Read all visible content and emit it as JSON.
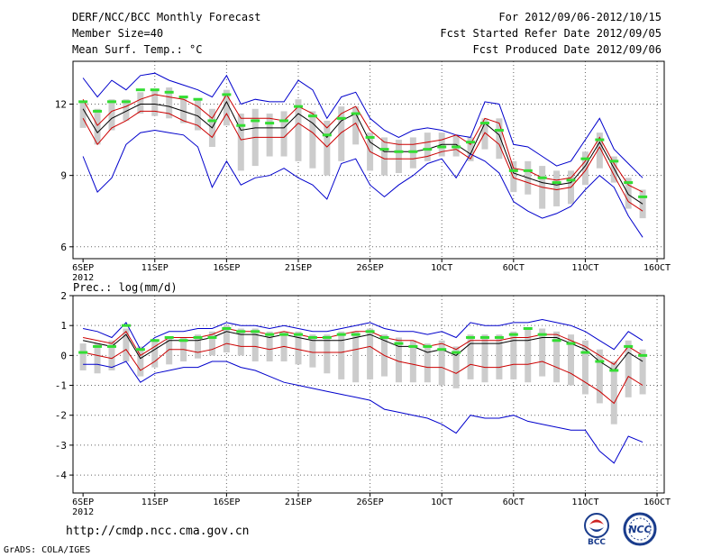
{
  "header": {
    "title": "DERF/NCC/BCC Monthly Forecast",
    "member_size": "Member Size=40",
    "variable": "Mean Surf. Temp.: °C",
    "forecast_range": "For 2012/09/06-2012/10/15",
    "refer_date": "Fcst Started Refer Date 2012/09/05",
    "produced_date": "Fcst Produced Date 2012/09/06"
  },
  "footer": {
    "url": "http://cmdp.ncc.cma.gov.cn",
    "grads": "GrADS: COLA/IGES",
    "logo_bcc": "BCC",
    "logo_ncc": "NCC"
  },
  "colors": {
    "envelope": "#0000cc",
    "spread": "#cc0000",
    "mean": "#000000",
    "median": "#33dd33",
    "box": "#cccccc"
  },
  "chart_data": [
    {
      "type": "line",
      "title": "Mean Surf. Temp.: °C",
      "x_tick_labels": [
        "6SEP",
        "11SEP",
        "16SEP",
        "21SEP",
        "26SEP",
        "1OCT",
        "6OCT",
        "11OCT",
        "16OCT"
      ],
      "x_tick_days": [
        0,
        5,
        10,
        15,
        20,
        25,
        30,
        35,
        40
      ],
      "year_label": "2012",
      "xlim": [
        -0.7,
        40.5
      ],
      "ylim": [
        5.5,
        13.8
      ],
      "y_ticks": [
        6,
        9,
        12
      ],
      "days": [
        0,
        1,
        2,
        3,
        4,
        5,
        6,
        7,
        8,
        9,
        10,
        11,
        12,
        13,
        14,
        15,
        16,
        17,
        18,
        19,
        20,
        21,
        22,
        23,
        24,
        25,
        26,
        27,
        28,
        29,
        30,
        31,
        32,
        33,
        34,
        35,
        36,
        37,
        38,
        39
      ],
      "series": [
        {
          "name": "max",
          "values": [
            13.1,
            12.3,
            13.0,
            12.6,
            13.2,
            13.3,
            13.0,
            12.8,
            12.6,
            12.3,
            13.2,
            12.0,
            12.2,
            12.1,
            12.1,
            13.0,
            12.6,
            11.4,
            12.3,
            12.5,
            11.4,
            10.9,
            10.6,
            10.9,
            11.0,
            10.9,
            10.7,
            10.6,
            12.1,
            12.0,
            10.3,
            10.2,
            9.8,
            9.4,
            9.6,
            10.5,
            11.4,
            10.1,
            9.5,
            8.9
          ]
        },
        {
          "name": "upper",
          "values": [
            12.2,
            11.1,
            11.7,
            11.9,
            12.2,
            12.4,
            12.3,
            12.2,
            11.9,
            11.4,
            12.4,
            11.4,
            11.4,
            11.4,
            11.3,
            11.9,
            11.6,
            11.0,
            11.6,
            11.9,
            10.9,
            10.4,
            10.3,
            10.3,
            10.4,
            10.5,
            10.7,
            10.3,
            11.4,
            11.2,
            9.3,
            9.2,
            8.9,
            8.8,
            8.9,
            9.6,
            10.6,
            9.5,
            8.6,
            8.3
          ]
        },
        {
          "name": "mean",
          "values": [
            11.8,
            10.8,
            11.4,
            11.7,
            12.0,
            12.0,
            11.9,
            11.7,
            11.5,
            11.0,
            12.1,
            10.9,
            11.0,
            11.0,
            11.0,
            11.6,
            11.2,
            10.6,
            11.3,
            11.6,
            10.4,
            10.0,
            10.0,
            10.0,
            10.1,
            10.3,
            10.3,
            9.9,
            11.2,
            10.7,
            9.1,
            8.9,
            8.7,
            8.6,
            8.7,
            9.4,
            10.4,
            9.3,
            8.2,
            7.8
          ]
        },
        {
          "name": "lower",
          "values": [
            11.4,
            10.3,
            11.0,
            11.3,
            11.7,
            11.7,
            11.6,
            11.3,
            11.1,
            10.6,
            11.6,
            10.5,
            10.6,
            10.6,
            10.6,
            11.2,
            10.8,
            10.2,
            10.8,
            11.2,
            10.0,
            9.7,
            9.7,
            9.7,
            9.8,
            10.0,
            10.1,
            9.7,
            10.8,
            10.3,
            8.9,
            8.7,
            8.5,
            8.4,
            8.5,
            9.2,
            10.2,
            9.0,
            7.9,
            7.5
          ]
        },
        {
          "name": "min",
          "values": [
            9.8,
            8.3,
            8.9,
            10.3,
            10.8,
            10.9,
            10.8,
            10.7,
            10.2,
            8.5,
            9.6,
            8.6,
            8.9,
            9.0,
            9.3,
            8.9,
            8.6,
            8.0,
            9.5,
            9.7,
            8.6,
            8.1,
            8.6,
            9.0,
            9.5,
            9.7,
            8.9,
            9.9,
            9.6,
            9.1,
            7.9,
            7.5,
            7.2,
            7.4,
            7.7,
            8.4,
            9.0,
            8.5,
            7.3,
            6.4
          ]
        },
        {
          "name": "median",
          "values": [
            12.1,
            11.7,
            12.1,
            12.1,
            12.6,
            12.6,
            12.5,
            12.3,
            12.2,
            11.3,
            12.4,
            11.1,
            11.3,
            11.2,
            11.3,
            11.9,
            11.5,
            10.7,
            11.4,
            11.6,
            10.6,
            10.1,
            10.0,
            10.0,
            10.1,
            10.2,
            10.2,
            10.4,
            11.2,
            10.9,
            9.2,
            9.2,
            8.9,
            8.7,
            8.8,
            9.7,
            10.5,
            9.6,
            8.7,
            8.1
          ]
        },
        {
          "name": "box_top",
          "values": [
            12.1,
            11.8,
            12.2,
            12.2,
            12.5,
            12.6,
            12.7,
            12.3,
            12.2,
            11.8,
            12.6,
            11.6,
            11.8,
            11.6,
            11.7,
            12.2,
            11.7,
            11.3,
            11.9,
            11.9,
            10.8,
            10.6,
            10.5,
            10.6,
            10.8,
            10.8,
            10.7,
            10.6,
            11.4,
            11.4,
            9.6,
            9.6,
            9.4,
            9.2,
            9.2,
            10.0,
            10.8,
            9.8,
            8.9,
            8.4
          ]
        },
        {
          "name": "box_bottom",
          "values": [
            11.0,
            10.3,
            10.9,
            11.3,
            11.6,
            11.5,
            11.4,
            11.2,
            10.9,
            10.2,
            11.1,
            9.2,
            9.4,
            9.8,
            9.8,
            9.6,
            9.3,
            9.0,
            9.6,
            10.3,
            9.2,
            9.0,
            9.1,
            9.3,
            9.6,
            9.8,
            9.8,
            9.6,
            10.1,
            9.7,
            8.3,
            8.2,
            7.6,
            7.7,
            7.8,
            8.6,
            9.3,
            8.7,
            7.6,
            7.2
          ]
        }
      ]
    },
    {
      "type": "line",
      "title": "Prec.: log(mm/d)",
      "x_tick_labels": [
        "6SEP",
        "11SEP",
        "16SEP",
        "21SEP",
        "26SEP",
        "1OCT",
        "6OCT",
        "11OCT",
        "16OCT"
      ],
      "x_tick_days": [
        0,
        5,
        10,
        15,
        20,
        25,
        30,
        35,
        40
      ],
      "year_label": "2012",
      "xlim": [
        -0.7,
        40.5
      ],
      "ylim": [
        -4.6,
        2.0
      ],
      "y_ticks": [
        -4,
        -3,
        -2,
        -1,
        0,
        1,
        2
      ],
      "days": [
        0,
        1,
        2,
        3,
        4,
        5,
        6,
        7,
        8,
        9,
        10,
        11,
        12,
        13,
        14,
        15,
        16,
        17,
        18,
        19,
        20,
        21,
        22,
        23,
        24,
        25,
        26,
        27,
        28,
        29,
        30,
        31,
        32,
        33,
        34,
        35,
        36,
        37,
        38,
        39
      ],
      "series": [
        {
          "name": "max",
          "values": [
            0.9,
            0.8,
            0.6,
            1.1,
            0.2,
            0.6,
            0.8,
            0.8,
            0.9,
            0.9,
            1.1,
            1.0,
            1.0,
            0.9,
            1.0,
            0.9,
            0.8,
            0.8,
            0.9,
            1.0,
            1.1,
            0.9,
            0.8,
            0.8,
            0.7,
            0.8,
            0.6,
            1.1,
            1.0,
            1.0,
            1.1,
            1.1,
            1.2,
            1.1,
            1.0,
            0.8,
            0.5,
            0.2,
            0.8,
            0.5
          ]
        },
        {
          "name": "upper",
          "values": [
            0.6,
            0.5,
            0.4,
            0.8,
            0.0,
            0.3,
            0.6,
            0.6,
            0.6,
            0.7,
            0.9,
            0.8,
            0.8,
            0.7,
            0.8,
            0.7,
            0.6,
            0.6,
            0.7,
            0.8,
            0.8,
            0.6,
            0.5,
            0.5,
            0.3,
            0.4,
            0.2,
            0.5,
            0.5,
            0.5,
            0.6,
            0.6,
            0.7,
            0.7,
            0.5,
            0.3,
            0.0,
            -0.3,
            0.3,
            0.0
          ]
        },
        {
          "name": "mean",
          "values": [
            0.5,
            0.4,
            0.3,
            0.7,
            -0.1,
            0.2,
            0.5,
            0.5,
            0.5,
            0.6,
            0.8,
            0.7,
            0.7,
            0.6,
            0.7,
            0.6,
            0.5,
            0.5,
            0.5,
            0.6,
            0.7,
            0.5,
            0.3,
            0.3,
            0.1,
            0.2,
            0.0,
            0.4,
            0.4,
            0.4,
            0.5,
            0.5,
            0.6,
            0.6,
            0.4,
            0.2,
            -0.2,
            -0.5,
            0.1,
            -0.2
          ]
        },
        {
          "name": "lower",
          "values": [
            0.1,
            0.0,
            -0.1,
            0.2,
            -0.5,
            -0.2,
            0.2,
            0.2,
            0.1,
            0.2,
            0.4,
            0.3,
            0.3,
            0.2,
            0.3,
            0.2,
            0.1,
            0.1,
            0.1,
            0.2,
            0.3,
            0.0,
            -0.2,
            -0.3,
            -0.4,
            -0.4,
            -0.6,
            -0.3,
            -0.4,
            -0.4,
            -0.3,
            -0.3,
            -0.2,
            -0.4,
            -0.6,
            -0.9,
            -1.2,
            -1.6,
            -0.7,
            -1.0
          ]
        },
        {
          "name": "min",
          "values": [
            -0.3,
            -0.3,
            -0.4,
            -0.2,
            -0.9,
            -0.6,
            -0.5,
            -0.4,
            -0.4,
            -0.2,
            -0.2,
            -0.4,
            -0.5,
            -0.7,
            -0.9,
            -1.0,
            -1.1,
            -1.2,
            -1.3,
            -1.4,
            -1.5,
            -1.8,
            -1.9,
            -2.0,
            -2.1,
            -2.3,
            -2.6,
            -2.0,
            -2.1,
            -2.1,
            -2.0,
            -2.2,
            -2.3,
            -2.4,
            -2.5,
            -2.5,
            -3.2,
            -3.6,
            -2.7,
            -2.9
          ]
        },
        {
          "name": "median",
          "values": [
            0.1,
            0.3,
            0.3,
            1.0,
            0.2,
            0.5,
            0.6,
            0.5,
            0.6,
            0.6,
            0.9,
            0.8,
            0.8,
            0.7,
            0.7,
            0.7,
            0.6,
            0.6,
            0.7,
            0.7,
            0.8,
            0.6,
            0.4,
            0.3,
            0.3,
            0.2,
            0.1,
            0.6,
            0.6,
            0.6,
            0.7,
            0.9,
            0.7,
            0.5,
            0.4,
            0.1,
            -0.2,
            -0.5,
            0.3,
            0.0
          ]
        },
        {
          "name": "box_top",
          "values": [
            0.4,
            0.4,
            0.5,
            0.9,
            0.3,
            0.5,
            0.6,
            0.6,
            0.7,
            0.8,
            1.0,
            0.9,
            0.9,
            0.8,
            0.8,
            0.8,
            0.7,
            0.7,
            0.8,
            0.8,
            0.9,
            0.7,
            0.6,
            0.5,
            0.4,
            0.5,
            0.3,
            0.7,
            0.7,
            0.7,
            0.8,
            0.9,
            0.9,
            0.8,
            0.7,
            0.5,
            0.2,
            -0.2,
            0.5,
            0.2
          ]
        },
        {
          "name": "box_bottom",
          "values": [
            -0.5,
            -0.6,
            -0.5,
            -0.2,
            -0.7,
            -0.4,
            -0.3,
            -0.2,
            -0.1,
            0.0,
            0.1,
            0.0,
            -0.2,
            -0.2,
            -0.2,
            -0.3,
            -0.4,
            -0.6,
            -0.8,
            -0.9,
            -0.8,
            -0.7,
            -0.9,
            -0.9,
            -0.9,
            -1.0,
            -1.1,
            -0.8,
            -0.9,
            -0.8,
            -0.8,
            -0.9,
            -0.7,
            -0.9,
            -1.0,
            -1.3,
            -1.6,
            -2.3,
            -1.4,
            -1.3
          ]
        }
      ]
    }
  ]
}
